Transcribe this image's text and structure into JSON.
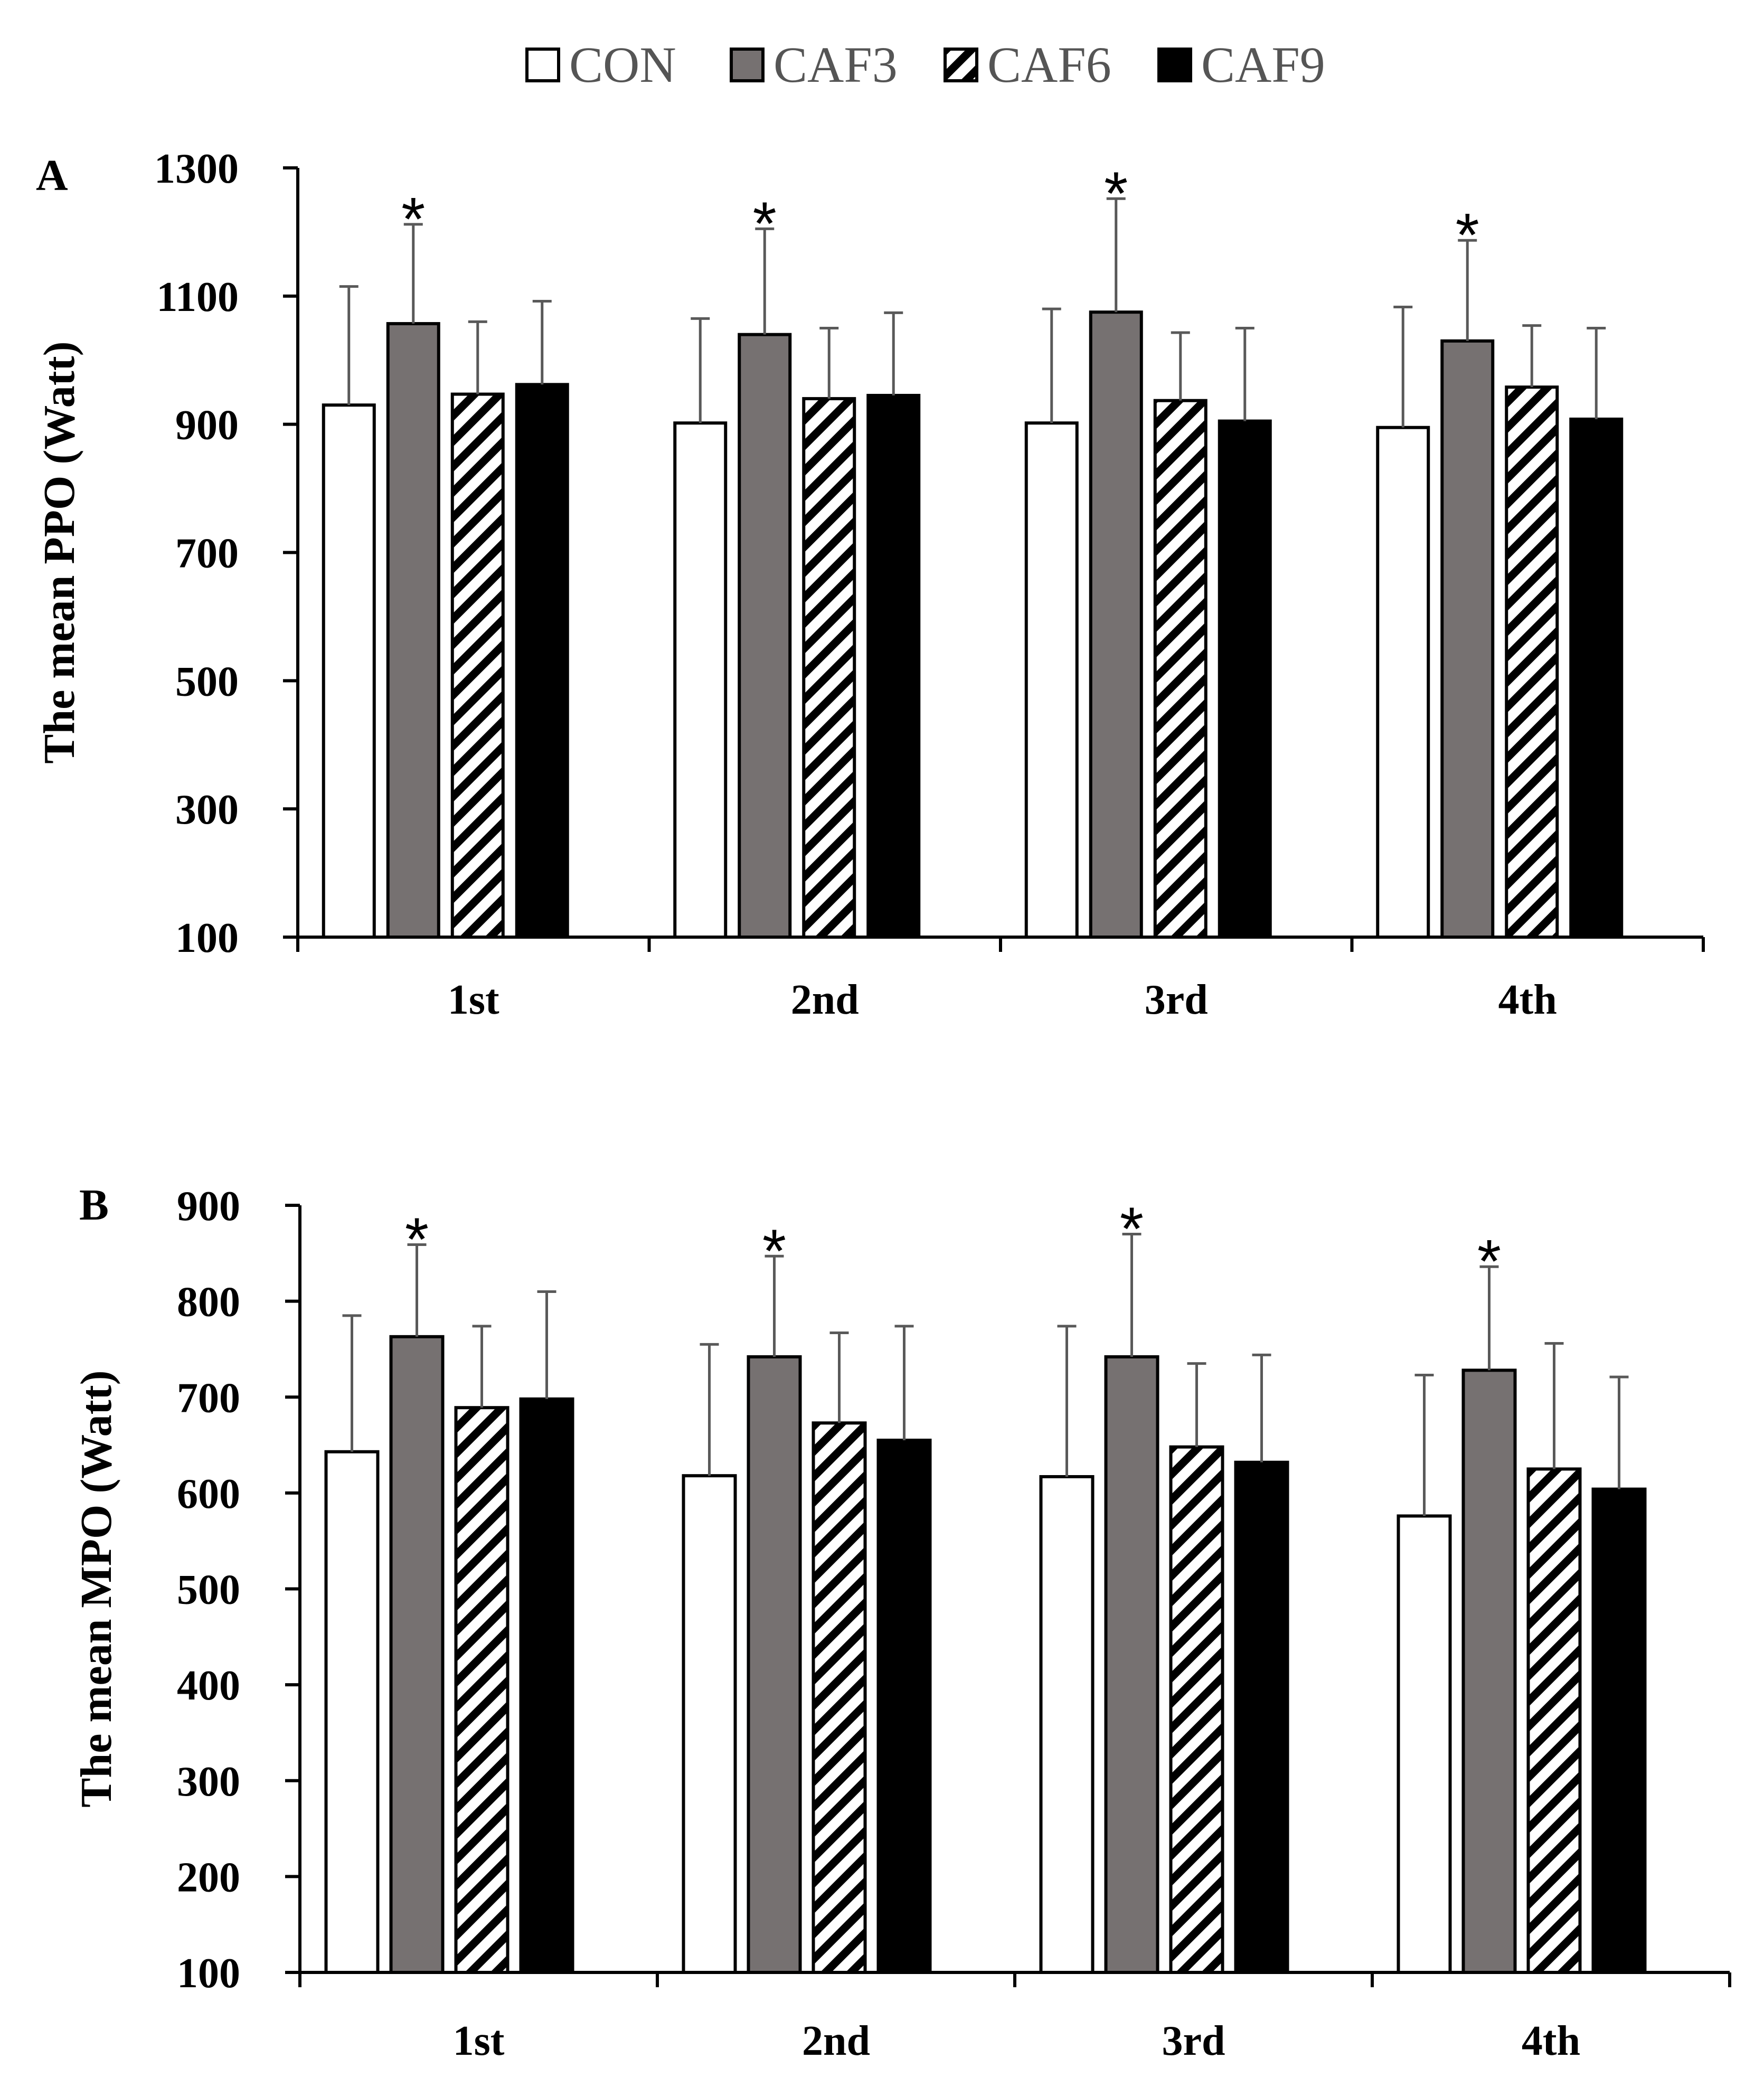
{
  "legend": {
    "items": [
      {
        "label": "CON",
        "series_index": 0
      },
      {
        "label": "CAF3",
        "series_index": 1
      },
      {
        "label": "CAF6",
        "series_index": 2
      },
      {
        "label": "CAF9",
        "series_index": 3
      }
    ]
  },
  "series_style": [
    {
      "name": "CON",
      "fill": "#ffffff",
      "pattern": "none"
    },
    {
      "name": "CAF3",
      "fill": "#767171",
      "pattern": "none"
    },
    {
      "name": "CAF6",
      "fill": "#ffffff",
      "pattern": "diagonal-hatch"
    },
    {
      "name": "CAF9",
      "fill": "#000000",
      "pattern": "none"
    }
  ],
  "chart_data": [
    {
      "type": "bar",
      "panel": "A",
      "title": "",
      "xlabel": "",
      "ylabel": "The mean PPO (Watt)",
      "ylim": [
        100,
        1300
      ],
      "yticks": [
        100,
        300,
        500,
        700,
        900,
        1100,
        1300
      ],
      "categories": [
        "1st",
        "2nd",
        "3rd",
        "4th"
      ],
      "series": [
        {
          "name": "CON",
          "values": [
            930,
            902,
            902,
            895
          ],
          "errors": [
            185,
            163,
            178,
            188
          ]
        },
        {
          "name": "CAF3",
          "values": [
            1057,
            1040,
            1075,
            1030
          ],
          "errors": [
            155,
            165,
            177,
            157
          ]
        },
        {
          "name": "CAF6",
          "values": [
            947,
            940,
            937,
            958
          ],
          "errors": [
            113,
            110,
            106,
            96
          ]
        },
        {
          "name": "CAF9",
          "values": [
            962,
            945,
            905,
            908
          ],
          "errors": [
            130,
            129,
            145,
            142
          ]
        }
      ],
      "annotations": [
        {
          "text": "*",
          "category": "1st",
          "series": "CAF3"
        },
        {
          "text": "*",
          "category": "2nd",
          "series": "CAF3"
        },
        {
          "text": "*",
          "category": "3rd",
          "series": "CAF3"
        },
        {
          "text": "*",
          "category": "4th",
          "series": "CAF3"
        }
      ]
    },
    {
      "type": "bar",
      "panel": "B",
      "title": "",
      "xlabel": "",
      "ylabel": "The mean MPO (Watt)",
      "ylim": [
        100,
        900
      ],
      "yticks": [
        100,
        200,
        300,
        400,
        500,
        600,
        700,
        800,
        900
      ],
      "categories": [
        "1st",
        "2nd",
        "3rd",
        "4th"
      ],
      "series": [
        {
          "name": "CON",
          "values": [
            643,
            618,
            617,
            576
          ],
          "errors": [
            142,
            137,
            157,
            147
          ]
        },
        {
          "name": "CAF3",
          "values": [
            763,
            742,
            742,
            728
          ],
          "errors": [
            96,
            105,
            128,
            108
          ]
        },
        {
          "name": "CAF6",
          "values": [
            689,
            673,
            648,
            625
          ],
          "errors": [
            85,
            94,
            87,
            131
          ]
        },
        {
          "name": "CAF9",
          "values": [
            698,
            655,
            632,
            604
          ],
          "errors": [
            112,
            119,
            112,
            117
          ]
        }
      ],
      "annotations": [
        {
          "text": "*",
          "category": "1st",
          "series": "CAF3"
        },
        {
          "text": "*",
          "category": "2nd",
          "series": "CAF3"
        },
        {
          "text": "*",
          "category": "3rd",
          "series": "CAF3"
        },
        {
          "text": "*",
          "category": "4th",
          "series": "CAF3"
        }
      ]
    }
  ]
}
